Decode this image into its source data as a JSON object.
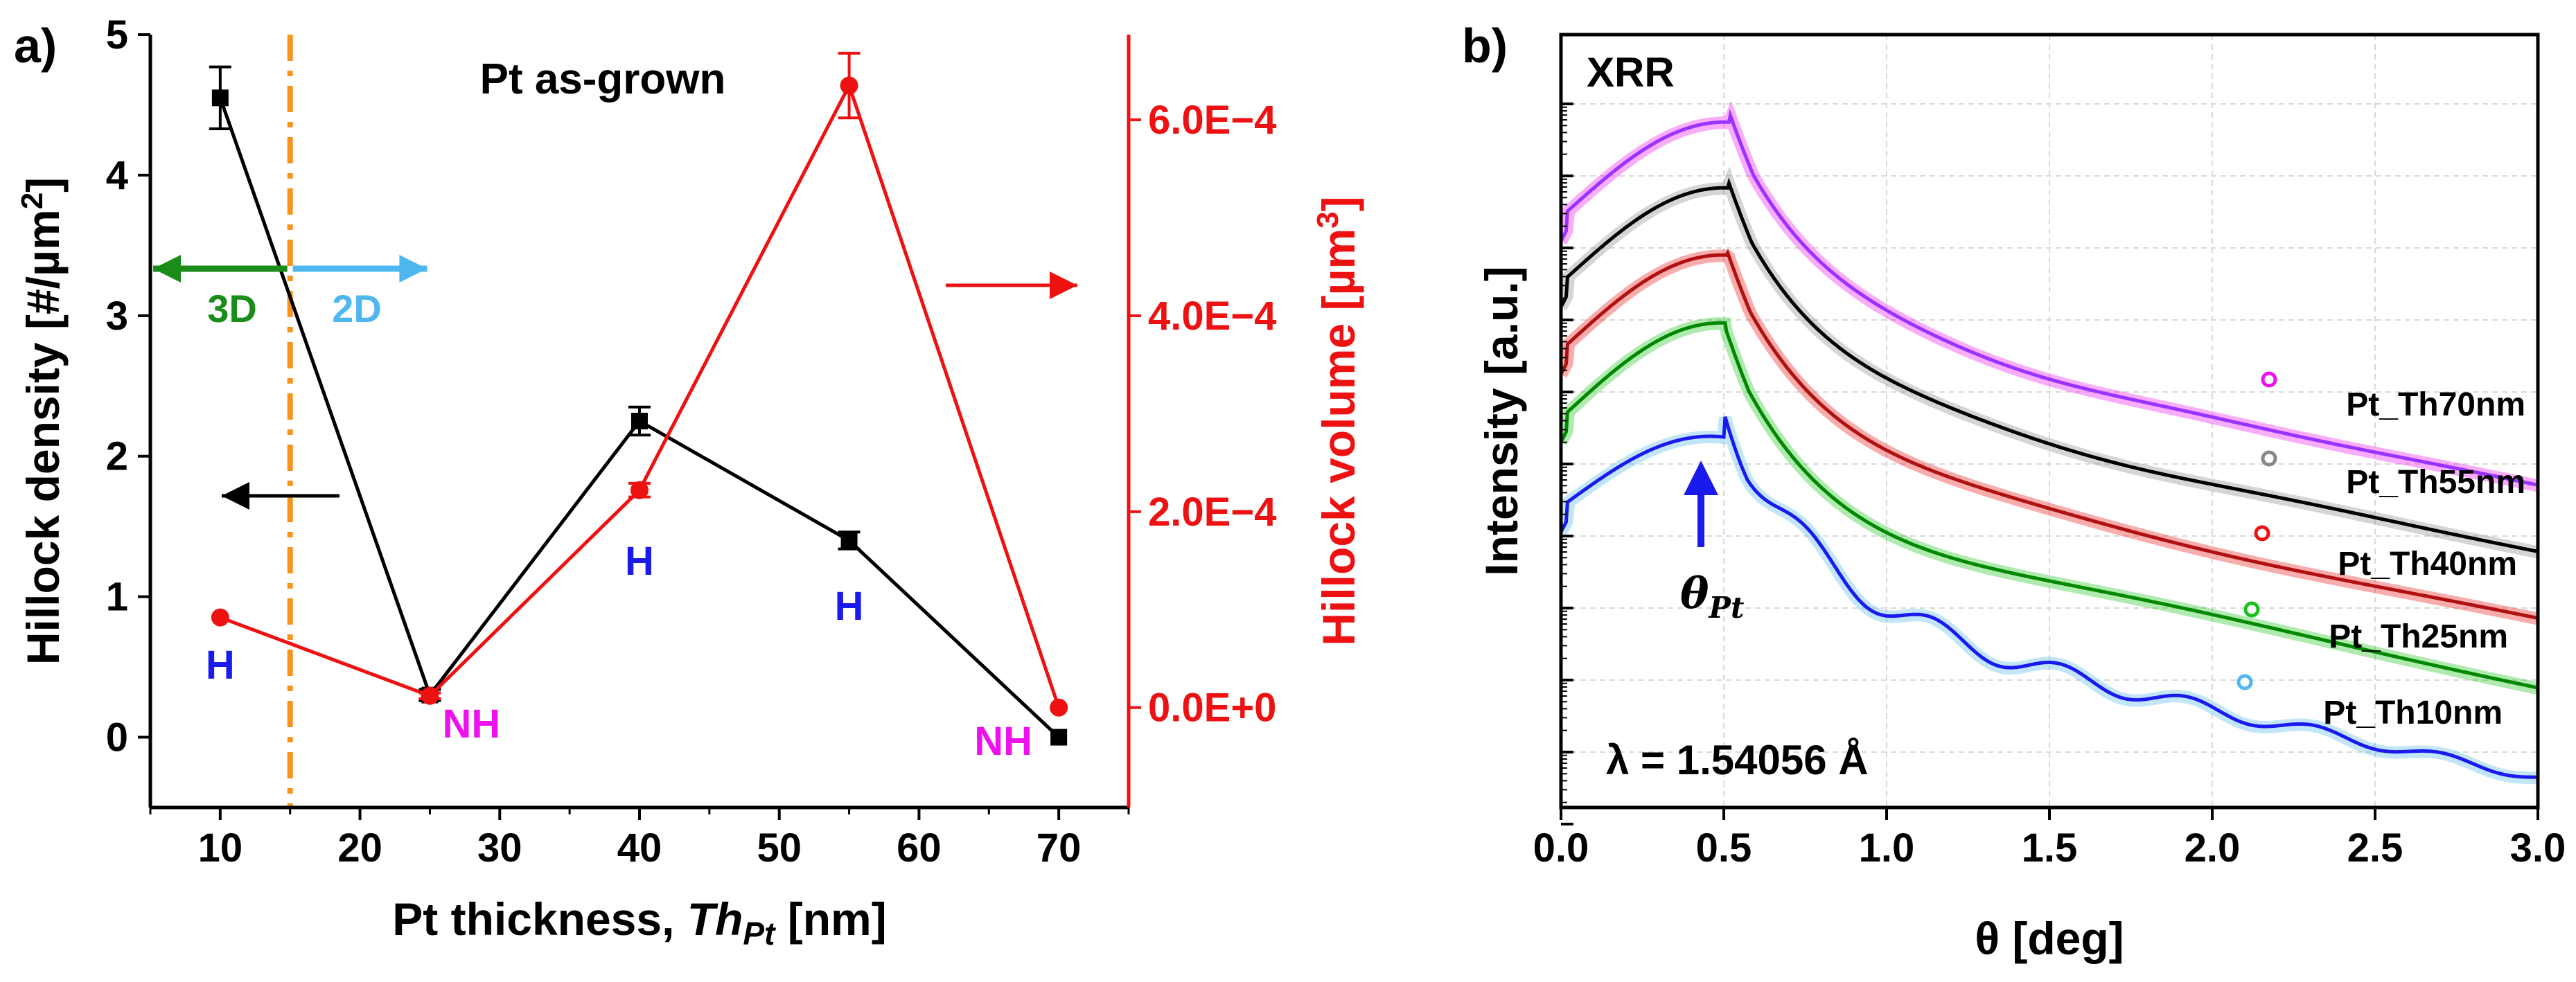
{
  "figure": {
    "colors": {
      "black": "#000000",
      "red": "#ee1111",
      "orange": "#f7941d",
      "green": "#1a8c1a",
      "lightblue": "#4fb7ef",
      "blue": "#1a1aee",
      "magenta": "#ee11ee",
      "purple": "#9933ff",
      "darkred": "#b01010",
      "bright_green": "#19c219",
      "grid": "#d9d9d9"
    }
  },
  "chart_data": [
    {
      "type": "line",
      "panel_label": "a)",
      "title": "Pt as-grown",
      "xlabel": "Pt thickness, Th_Pt [nm]",
      "xlabel_prefix": "Pt thickness,",
      "xlabel_italic": "Th",
      "xlabel_sub": "Pt",
      "xlabel_suffix": "[nm]",
      "ylabel_left": "Hillock density [#/µm²]",
      "ylabel_left_text": "Hillock density [#/µm",
      "ylabel_left_sup": "2",
      "ylabel_left_end": "]",
      "ylabel_right": "Hillock volume [µm³]",
      "ylabel_right_text": "Hillock volume [µm",
      "ylabel_right_sup": "3",
      "ylabel_right_end": "]",
      "xlim": [
        5,
        75
      ],
      "ylim_left": [
        -0.5,
        5
      ],
      "ylim_right": [
        -0.000102,
        0.000687
      ],
      "x_ticks": [
        10,
        20,
        30,
        40,
        50,
        60,
        70
      ],
      "x_tick_labels": [
        "10",
        "20",
        "30",
        "40",
        "50",
        "60",
        "70"
      ],
      "y_left_ticks": [
        0,
        1,
        2,
        3,
        4,
        5
      ],
      "y_left_tick_labels": [
        "0",
        "1",
        "2",
        "3",
        "4",
        "5"
      ],
      "y_right_ticks": [
        0,
        0.0002,
        0.0004,
        0.0006
      ],
      "y_right_tick_labels": [
        "0.0E+0",
        "2.0E−4",
        "4.0E−4",
        "6.0E−4"
      ],
      "series": [
        {
          "name": "Hillock density",
          "axis": "left",
          "color": "#000000",
          "marker": "square",
          "x": [
            10,
            25,
            40,
            55,
            70
          ],
          "y": [
            4.55,
            0.3,
            2.25,
            1.4,
            0
          ],
          "yerr": [
            0.22,
            0.04,
            0.1,
            0.06,
            0
          ]
        },
        {
          "name": "Hillock volume",
          "axis": "right",
          "color": "#ee1111",
          "marker": "circle",
          "x": [
            10,
            25,
            40,
            55,
            70
          ],
          "y": [
            9.2e-05,
            1.2e-05,
            0.000222,
            0.000635,
            0
          ],
          "yerr": [
            0,
            3e-06,
            7e-06,
            3.3e-05,
            0
          ]
        }
      ],
      "threshold_line_x": 15,
      "annotations": {
        "growth_3d": "3D",
        "growth_2d": "2D",
        "hillock_labels": [
          {
            "x": 10,
            "text": "H"
          },
          {
            "x": 25,
            "text": "NH"
          },
          {
            "x": 40,
            "text": "H"
          },
          {
            "x": 55,
            "text": "H"
          },
          {
            "x": 70,
            "text": "NH"
          }
        ]
      }
    },
    {
      "type": "line",
      "panel_label": "b)",
      "title": "XRR",
      "xlabel": "θ [deg]",
      "ylabel": "Intensity [a.u.]",
      "yscale": "log",
      "xlim": [
        0,
        3
      ],
      "x_ticks": [
        0,
        0.5,
        1,
        1.5,
        2,
        2.5,
        3
      ],
      "x_tick_labels": [
        "0.0",
        "0.5",
        "1.0",
        "1.5",
        "2.0",
        "2.5",
        "3.0"
      ],
      "wavelength_label": "λ = 1.54056 Å",
      "annotation": "θPt",
      "annotation_base": "θ",
      "annotation_sub": "Pt",
      "series": [
        {
          "name": "Pt_Th70nm",
          "thickness_nm": 70,
          "color": "#9933ff",
          "marker_color": "#ee11ee"
        },
        {
          "name": "Pt_Th55nm",
          "thickness_nm": 55,
          "color": "#000000",
          "marker_color": "#888888"
        },
        {
          "name": "Pt_Th40nm",
          "thickness_nm": 40,
          "color": "#b01010",
          "marker_color": "#ee1111"
        },
        {
          "name": "Pt_Th25nm",
          "thickness_nm": 25,
          "color": "#008800",
          "marker_color": "#19c219"
        },
        {
          "name": "Pt_Th10nm",
          "thickness_nm": 10,
          "color": "#1a1aee",
          "marker_color": "#4fb7ef"
        }
      ]
    }
  ]
}
